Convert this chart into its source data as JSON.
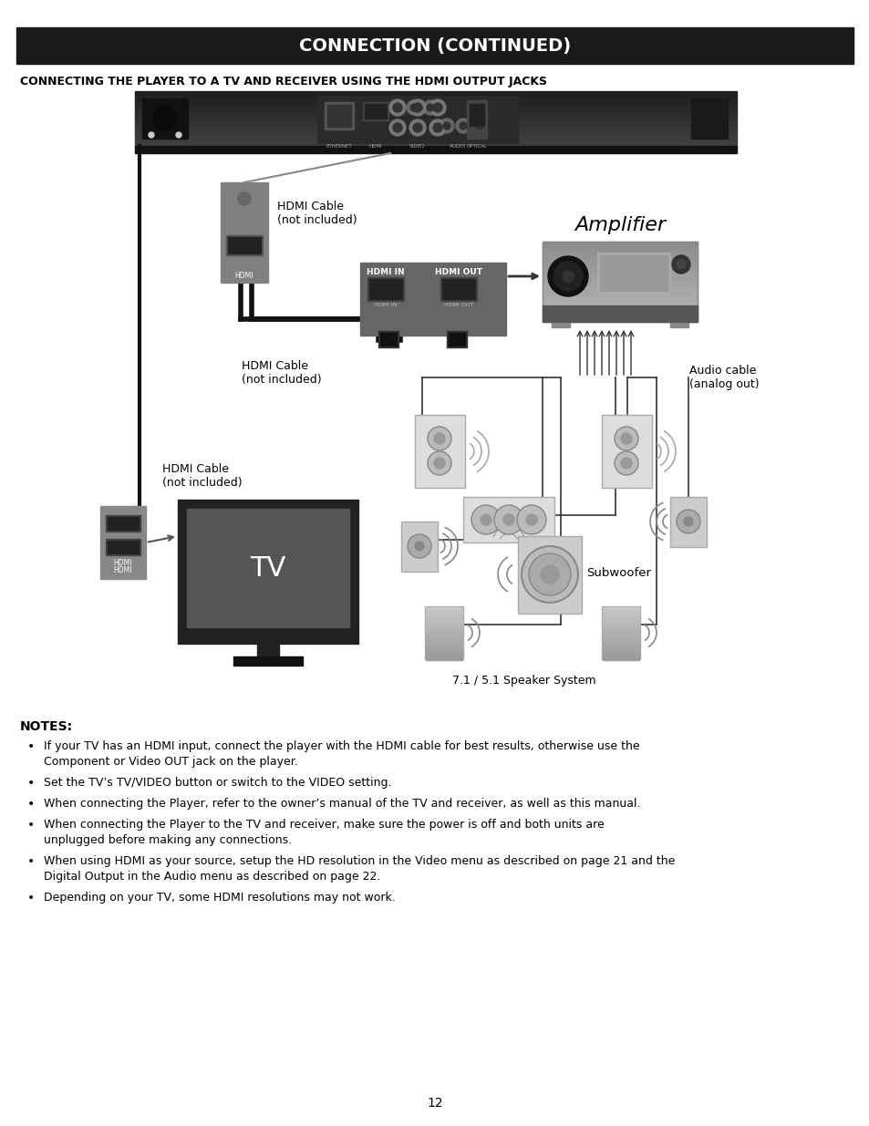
{
  "page_background": "#ffffff",
  "header_bg": "#1a1a1a",
  "header_text": "CONNECTION (CONTINUED)",
  "header_text_color": "#ffffff",
  "subheader_text": "CONNECTING THE PLAYER TO A TV AND RECEIVER USING THE HDMI OUTPUT JACKS",
  "subheader_color": "#000000",
  "page_number": "12",
  "notes_title": "NOTES:",
  "notes_items": [
    "If your TV has an HDMI input, connect the player with the HDMI cable for best results, otherwise use the Component or Video OUT jack on the player.",
    "Set the TV’s TV/VIDEO button or switch to the VIDEO setting.",
    "When connecting the Player, refer to the owner’s manual of the TV and receiver, as well as this manual.",
    "When connecting the Player to the TV and receiver, make sure the power is off and both units are unplugged before making any connections.",
    "When using HDMI as your source, setup the HD resolution in the Video menu as described on page 21 and the Digital Output in the Audio menu as described on page 22.",
    "Depending on your TV, some HDMI resolutions may not work."
  ],
  "diagram_labels": {
    "hdmi_cable_top": "HDMI Cable\n(not included)",
    "hdmi_cable_mid": "HDMI Cable\n(not included)",
    "hdmi_cable_bottom": "HDMI Cable\n(not included)",
    "amplifier": "Amplifier",
    "audio_cable": "Audio cable\n(analog out)",
    "subwoofer": "Subwoofer",
    "speaker_system": "7.1 / 5.1 Speaker System",
    "hdmi_in": "HDMI IN",
    "hdmi_out": "HDMI OUT",
    "tv": "TV"
  }
}
